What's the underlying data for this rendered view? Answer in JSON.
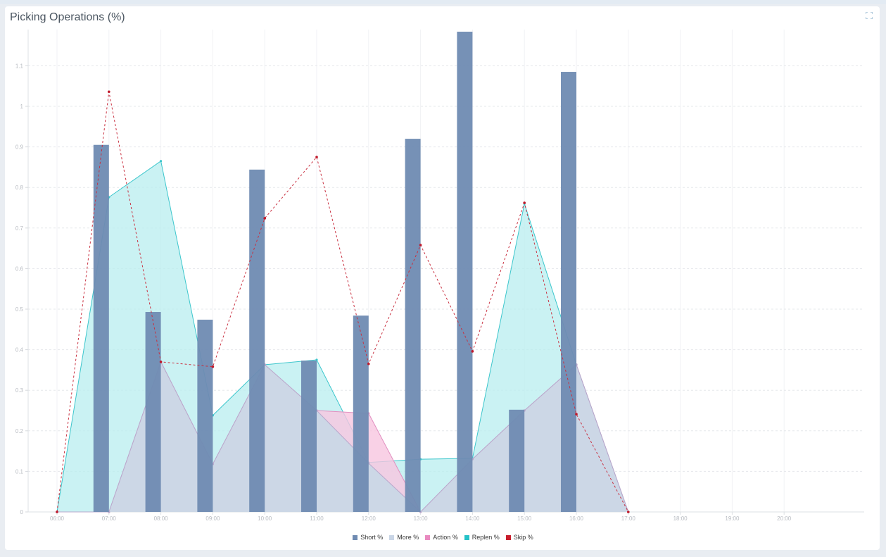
{
  "widget": {
    "title": "Picking Operations (%)",
    "expand_icon": "expand-icon"
  },
  "colors": {
    "short": "#6f8bb2",
    "more": "#c9d5e6",
    "action": "#e98ac0",
    "replen": "#25c2c8",
    "skip": "#c81e2c"
  },
  "legend": [
    {
      "key": "short",
      "label": "Short %"
    },
    {
      "key": "more",
      "label": "More %"
    },
    {
      "key": "action",
      "label": "Action %"
    },
    {
      "key": "replen",
      "label": "Replen %"
    },
    {
      "key": "skip",
      "label": "Skip %"
    }
  ],
  "chart_data": {
    "type": "bar",
    "title": "Picking Operations (%)",
    "xlabel": "",
    "ylabel": "",
    "ylim": [
      0,
      1.2
    ],
    "yticks": [
      0,
      0.1,
      0.2,
      0.3,
      0.4,
      0.5,
      0.6,
      0.7,
      0.8,
      0.9,
      1,
      1.1
    ],
    "categories": [
      "06:00",
      "07:00",
      "08:00",
      "09:00",
      "10:00",
      "11:00",
      "12:00",
      "13:00",
      "14:00",
      "15:00",
      "16:00",
      "17:00",
      "18:00",
      "19:00",
      "20:00"
    ],
    "grid": true,
    "legend_position": "bottom",
    "series": [
      {
        "name": "Short %",
        "type": "bar",
        "values": [
          0,
          0.905,
          0.493,
          0.474,
          0.844,
          0.373,
          0.484,
          0.92,
          1.184,
          0.252,
          1.085,
          0,
          null,
          null,
          null
        ]
      },
      {
        "name": "More %",
        "type": "area",
        "values": [
          0,
          0,
          0.37,
          0.118,
          0.363,
          0.25,
          0.12,
          0,
          0.13,
          0.25,
          0.363,
          0,
          null,
          null,
          null
        ]
      },
      {
        "name": "Action %",
        "type": "area",
        "values": [
          0,
          0,
          0.37,
          0.118,
          0.363,
          0.25,
          0.243,
          0,
          0.13,
          0.25,
          0.363,
          0,
          null,
          null,
          null
        ]
      },
      {
        "name": "Replen %",
        "type": "area",
        "values": [
          0,
          0.776,
          0.865,
          0.238,
          0.363,
          0.375,
          0.122,
          0.13,
          0.132,
          0.76,
          0.363,
          0,
          null,
          null,
          null
        ]
      },
      {
        "name": "Skip %",
        "type": "line-dashed",
        "values": [
          0,
          1.036,
          0.37,
          0.358,
          0.724,
          0.875,
          0.365,
          0.658,
          0.396,
          0.762,
          0.241,
          0,
          null,
          null,
          null
        ]
      }
    ]
  }
}
